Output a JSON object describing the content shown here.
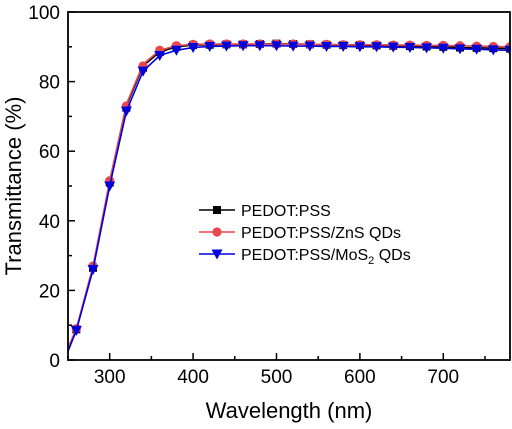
{
  "chart_data": {
    "type": "line",
    "xlabel": "Wavelength (nm)",
    "ylabel": "Transmittance (%)",
    "xlim": [
      250,
      780
    ],
    "ylim": [
      0,
      100
    ],
    "x_ticks": [
      300,
      400,
      500,
      600,
      700
    ],
    "y_ticks": [
      0,
      20,
      40,
      60,
      80,
      100
    ],
    "x_minor_step": 50,
    "y_minor_step": 10,
    "grid": false,
    "legend_position": "center-right",
    "marker_x": [
      260,
      280,
      300,
      320,
      340,
      360,
      380,
      400,
      420,
      440,
      460,
      480,
      500,
      520,
      540,
      560,
      580,
      600,
      620,
      640,
      660,
      680,
      700,
      720,
      740,
      760,
      780
    ],
    "series": [
      {
        "name": "PEDOT:PSS",
        "color": "#000000",
        "marker": "square",
        "curve": [
          [
            250,
            3
          ],
          [
            260,
            8.8
          ],
          [
            280,
            26.5
          ],
          [
            300,
            51
          ],
          [
            320,
            73
          ],
          [
            340,
            84.5
          ],
          [
            360,
            88.5
          ],
          [
            380,
            90
          ],
          [
            400,
            90.5
          ],
          [
            420,
            90.6
          ],
          [
            440,
            90.7
          ],
          [
            460,
            90.7
          ],
          [
            480,
            90.8
          ],
          [
            500,
            90.9
          ],
          [
            520,
            90.8
          ],
          [
            540,
            90.7
          ],
          [
            560,
            90.6
          ],
          [
            580,
            90.5
          ],
          [
            600,
            90.5
          ],
          [
            620,
            90.4
          ],
          [
            640,
            90.3
          ],
          [
            660,
            90.2
          ],
          [
            680,
            90.1
          ],
          [
            700,
            90
          ],
          [
            720,
            89.8
          ],
          [
            740,
            89.7
          ],
          [
            760,
            89.6
          ],
          [
            780,
            89.5
          ]
        ],
        "points": [
          [
            260,
            8.8
          ],
          [
            280,
            26.5
          ],
          [
            300,
            51
          ],
          [
            320,
            72.5
          ],
          [
            340,
            84
          ],
          [
            360,
            88.5
          ],
          [
            380,
            90
          ],
          [
            400,
            90.5
          ],
          [
            420,
            90.6
          ],
          [
            440,
            90.7
          ],
          [
            460,
            90.7
          ],
          [
            480,
            90.8
          ],
          [
            500,
            90.9
          ],
          [
            520,
            90.8
          ],
          [
            540,
            90.7
          ],
          [
            560,
            90.6
          ],
          [
            580,
            90.5
          ],
          [
            600,
            90.5
          ],
          [
            620,
            90.4
          ],
          [
            640,
            90.3
          ],
          [
            660,
            90.2
          ],
          [
            680,
            90.1
          ],
          [
            700,
            90
          ],
          [
            720,
            89.8
          ],
          [
            740,
            89.7
          ],
          [
            760,
            89.6
          ],
          [
            780,
            89.5
          ]
        ]
      },
      {
        "name": "PEDOT:PSS/ZnS QDs",
        "color": "#e8474f",
        "marker": "circle",
        "curve": [
          [
            250,
            3.5
          ],
          [
            260,
            9
          ],
          [
            280,
            27
          ],
          [
            300,
            51.5
          ],
          [
            320,
            73.5
          ],
          [
            340,
            85
          ],
          [
            360,
            89
          ],
          [
            380,
            90.3
          ],
          [
            400,
            90.7
          ],
          [
            420,
            90.8
          ],
          [
            440,
            90.8
          ],
          [
            460,
            90.8
          ],
          [
            480,
            90.8
          ],
          [
            500,
            90.8
          ],
          [
            520,
            90.8
          ],
          [
            540,
            90.7
          ],
          [
            560,
            90.7
          ],
          [
            580,
            90.6
          ],
          [
            600,
            90.6
          ],
          [
            620,
            90.6
          ],
          [
            640,
            90.5
          ],
          [
            660,
            90.5
          ],
          [
            680,
            90.4
          ],
          [
            700,
            90.4
          ],
          [
            720,
            90.3
          ],
          [
            740,
            90.2
          ],
          [
            760,
            90.1
          ],
          [
            780,
            90
          ]
        ],
        "points": [
          [
            260,
            9
          ],
          [
            280,
            27
          ],
          [
            300,
            51.5
          ],
          [
            320,
            73
          ],
          [
            340,
            84.5
          ],
          [
            360,
            89
          ],
          [
            380,
            90.3
          ],
          [
            400,
            90.7
          ],
          [
            420,
            90.8
          ],
          [
            440,
            90.8
          ],
          [
            460,
            90.8
          ],
          [
            480,
            90.8
          ],
          [
            500,
            90.8
          ],
          [
            520,
            90.8
          ],
          [
            540,
            90.7
          ],
          [
            560,
            90.7
          ],
          [
            580,
            90.6
          ],
          [
            600,
            90.6
          ],
          [
            620,
            90.6
          ],
          [
            640,
            90.5
          ],
          [
            660,
            90.5
          ],
          [
            680,
            90.4
          ],
          [
            700,
            90.4
          ],
          [
            720,
            90.3
          ],
          [
            740,
            90.2
          ],
          [
            760,
            90.1
          ],
          [
            780,
            90
          ]
        ]
      },
      {
        "name": "PEDOT:PSS/MoS2 QDs",
        "name_parts": [
          "PEDOT:PSS/MoS",
          "2",
          " QDs"
        ],
        "color": "#0000dd",
        "marker": "triangle-down",
        "curve": [
          [
            250,
            2.5
          ],
          [
            260,
            8.5
          ],
          [
            280,
            26
          ],
          [
            300,
            50
          ],
          [
            320,
            71.5
          ],
          [
            340,
            83
          ],
          [
            360,
            87.5
          ],
          [
            380,
            89
          ],
          [
            400,
            89.8
          ],
          [
            420,
            90.1
          ],
          [
            440,
            90.2
          ],
          [
            460,
            90.3
          ],
          [
            480,
            90.3
          ],
          [
            500,
            90.3
          ],
          [
            520,
            90.2
          ],
          [
            540,
            90.2
          ],
          [
            560,
            90.1
          ],
          [
            580,
            90.1
          ],
          [
            600,
            90
          ],
          [
            620,
            90
          ],
          [
            640,
            89.9
          ],
          [
            660,
            89.8
          ],
          [
            680,
            89.7
          ],
          [
            700,
            89.6
          ],
          [
            720,
            89.4
          ],
          [
            740,
            89.3
          ],
          [
            760,
            89.1
          ],
          [
            780,
            89
          ]
        ],
        "points": [
          [
            260,
            8.5
          ],
          [
            280,
            26
          ],
          [
            300,
            50
          ],
          [
            320,
            71.5
          ],
          [
            340,
            83
          ],
          [
            360,
            87.5
          ],
          [
            380,
            89
          ],
          [
            400,
            89.8
          ],
          [
            420,
            90.1
          ],
          [
            440,
            90.2
          ],
          [
            460,
            90.3
          ],
          [
            480,
            90.3
          ],
          [
            500,
            90.3
          ],
          [
            520,
            90.2
          ],
          [
            540,
            90.2
          ],
          [
            560,
            90.1
          ],
          [
            580,
            90.1
          ],
          [
            600,
            90
          ],
          [
            620,
            90
          ],
          [
            640,
            89.9
          ],
          [
            660,
            89.8
          ],
          [
            680,
            89.7
          ],
          [
            700,
            89.6
          ],
          [
            720,
            89.4
          ],
          [
            740,
            89.3
          ],
          [
            760,
            89.1
          ],
          [
            780,
            89
          ]
        ]
      }
    ]
  }
}
